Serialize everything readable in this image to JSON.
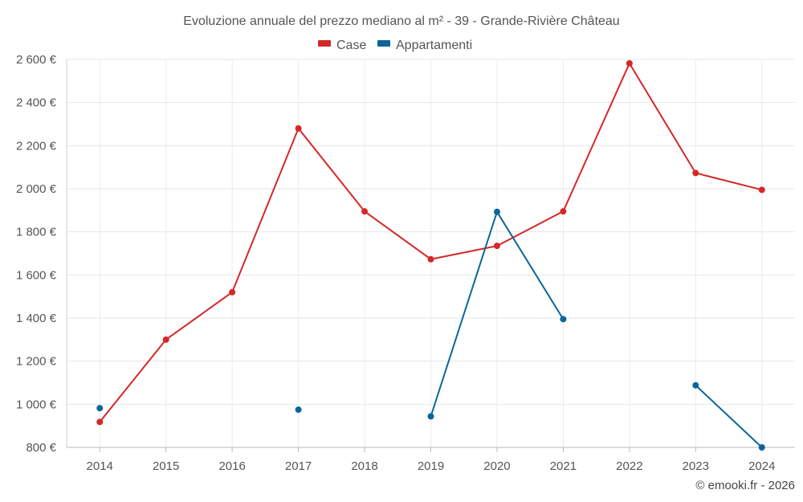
{
  "chart_data": {
    "type": "line",
    "title": "Evoluzione annuale del prezzo mediano al m² - 39 - Grande-Rivière Château",
    "categories": [
      "2014",
      "2015",
      "2016",
      "2017",
      "2018",
      "2019",
      "2020",
      "2021",
      "2022",
      "2023",
      "2024"
    ],
    "ylim": [
      800,
      2600
    ],
    "yticks": [
      800,
      1000,
      1200,
      1400,
      1600,
      1800,
      2000,
      2200,
      2400,
      2600
    ],
    "ytick_labels": [
      "800 €",
      "1 000 €",
      "1 200 €",
      "1 400 €",
      "1 600 €",
      "1 800 €",
      "2 000 €",
      "2 200 €",
      "2 400 €",
      "2 600 €"
    ],
    "legend_position": "top-center",
    "grid": true,
    "series": [
      {
        "name": "Case",
        "color": "#d62728",
        "values": [
          918,
          1300,
          1520,
          2280,
          1895,
          1673,
          1735,
          1895,
          2582,
          2073,
          1995
        ]
      },
      {
        "name": "Appartamenti",
        "color": "#0c6699",
        "values": [
          982,
          null,
          null,
          975,
          null,
          944,
          1893,
          1395,
          null,
          1088,
          800
        ]
      }
    ],
    "credit": "© emooki.fr - 2026"
  }
}
